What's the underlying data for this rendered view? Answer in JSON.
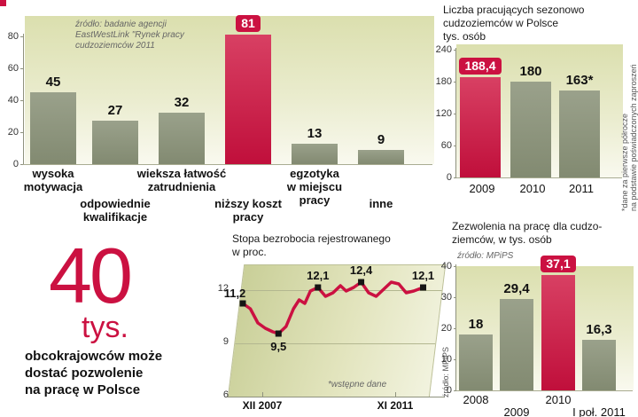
{
  "colors": {
    "accent_red": "#cb1141",
    "bar_olive": "#8b9180",
    "ink": "#111111",
    "muted": "#666666"
  },
  "callout": {
    "number": "40",
    "unit": "tys.",
    "text_bold": "obcokrajowców",
    "text_rest": " może\ndostać pozwolenie\nna pracę w Polsce"
  },
  "chart_data": [
    {
      "id": "reasons_bar",
      "type": "bar",
      "source": "źródło: badanie agencji\nEastWestLink \"Rynek pracy\ncudzoziemców 2011",
      "categories": [
        "wysoka\nmotywacja",
        "odpowiednie\nkwalifikacje",
        "wieksza łatwość\nzatrudnienia",
        "niższy koszt\npracy",
        "egzotyka\nw miejscu\npracy",
        "inne"
      ],
      "values": [
        45,
        27,
        32,
        81,
        13,
        9
      ],
      "value_labels": [
        "45",
        "27",
        "32",
        "81",
        "13",
        "9"
      ],
      "highlight_index": 3,
      "ylim": [
        0,
        80
      ],
      "yticks": [
        0,
        20,
        40,
        60,
        80
      ],
      "grid": false,
      "legend": null
    },
    {
      "id": "seasonal_workers_bar",
      "type": "bar",
      "title": "Liczba pracujących sezonowo\ncudzoziemców w Polsce\ntys. osób",
      "categories": [
        "2009",
        "2010",
        "2011"
      ],
      "values": [
        188.4,
        180,
        163
      ],
      "value_labels": [
        "188,4",
        "180",
        "163*"
      ],
      "highlight_index": 0,
      "ylim": [
        0,
        240
      ],
      "yticks": [
        0,
        60,
        120,
        180,
        240
      ],
      "note": "*dane za pierwsze półrocze\nna podstawie poświadczonych zaproszeń"
    },
    {
      "id": "unemployment_line",
      "type": "line",
      "title": "Stopa bezrobocia rejestrowanego\nw proc.",
      "yticks": [
        6,
        9,
        12
      ],
      "ylim": [
        6,
        13.4
      ],
      "x_labels": [
        "XII 2007",
        "XI 2011"
      ],
      "note": "*wstępne dane",
      "source": "źródło: MPiPS",
      "series": [
        {
          "x": 0.0,
          "v": 11.2,
          "label": "11,2",
          "label_pos": "left"
        },
        {
          "x": 0.04,
          "v": 10.9
        },
        {
          "x": 0.08,
          "v": 10.1
        },
        {
          "x": 0.12,
          "v": 9.8
        },
        {
          "x": 0.16,
          "v": 9.6
        },
        {
          "x": 0.19,
          "v": 9.5,
          "label": "9,5",
          "label_pos": "below"
        },
        {
          "x": 0.23,
          "v": 9.9
        },
        {
          "x": 0.27,
          "v": 10.9
        },
        {
          "x": 0.3,
          "v": 11.4
        },
        {
          "x": 0.33,
          "v": 11.2
        },
        {
          "x": 0.36,
          "v": 11.9
        },
        {
          "x": 0.4,
          "v": 12.1,
          "label": "12,1",
          "label_pos": "above"
        },
        {
          "x": 0.44,
          "v": 11.6
        },
        {
          "x": 0.48,
          "v": 11.8
        },
        {
          "x": 0.52,
          "v": 12.2
        },
        {
          "x": 0.55,
          "v": 11.9
        },
        {
          "x": 0.59,
          "v": 12.1
        },
        {
          "x": 0.63,
          "v": 12.4,
          "label": "12,4",
          "label_pos": "above"
        },
        {
          "x": 0.67,
          "v": 11.8
        },
        {
          "x": 0.71,
          "v": 11.6
        },
        {
          "x": 0.75,
          "v": 12.0
        },
        {
          "x": 0.79,
          "v": 12.4
        },
        {
          "x": 0.83,
          "v": 12.3
        },
        {
          "x": 0.87,
          "v": 11.8
        },
        {
          "x": 0.91,
          "v": 11.9
        },
        {
          "x": 0.96,
          "v": 12.1,
          "label": "12,1",
          "label_pos": "above"
        }
      ]
    },
    {
      "id": "work_permits_bar",
      "type": "bar",
      "title": "Zezwolenia na pracę dla cudzo-\nziemców, w tys. osób",
      "source": "źródło: MPiPS",
      "categories": [
        "2008",
        "2009",
        "2010",
        "I poł. 2011"
      ],
      "values": [
        18,
        29.4,
        37.1,
        16.3
      ],
      "value_labels": [
        "18",
        "29,4",
        "37,1",
        "16,3"
      ],
      "highlight_index": 2,
      "ylim": [
        0,
        40
      ],
      "yticks": [
        0,
        10,
        20,
        30,
        40
      ]
    }
  ]
}
